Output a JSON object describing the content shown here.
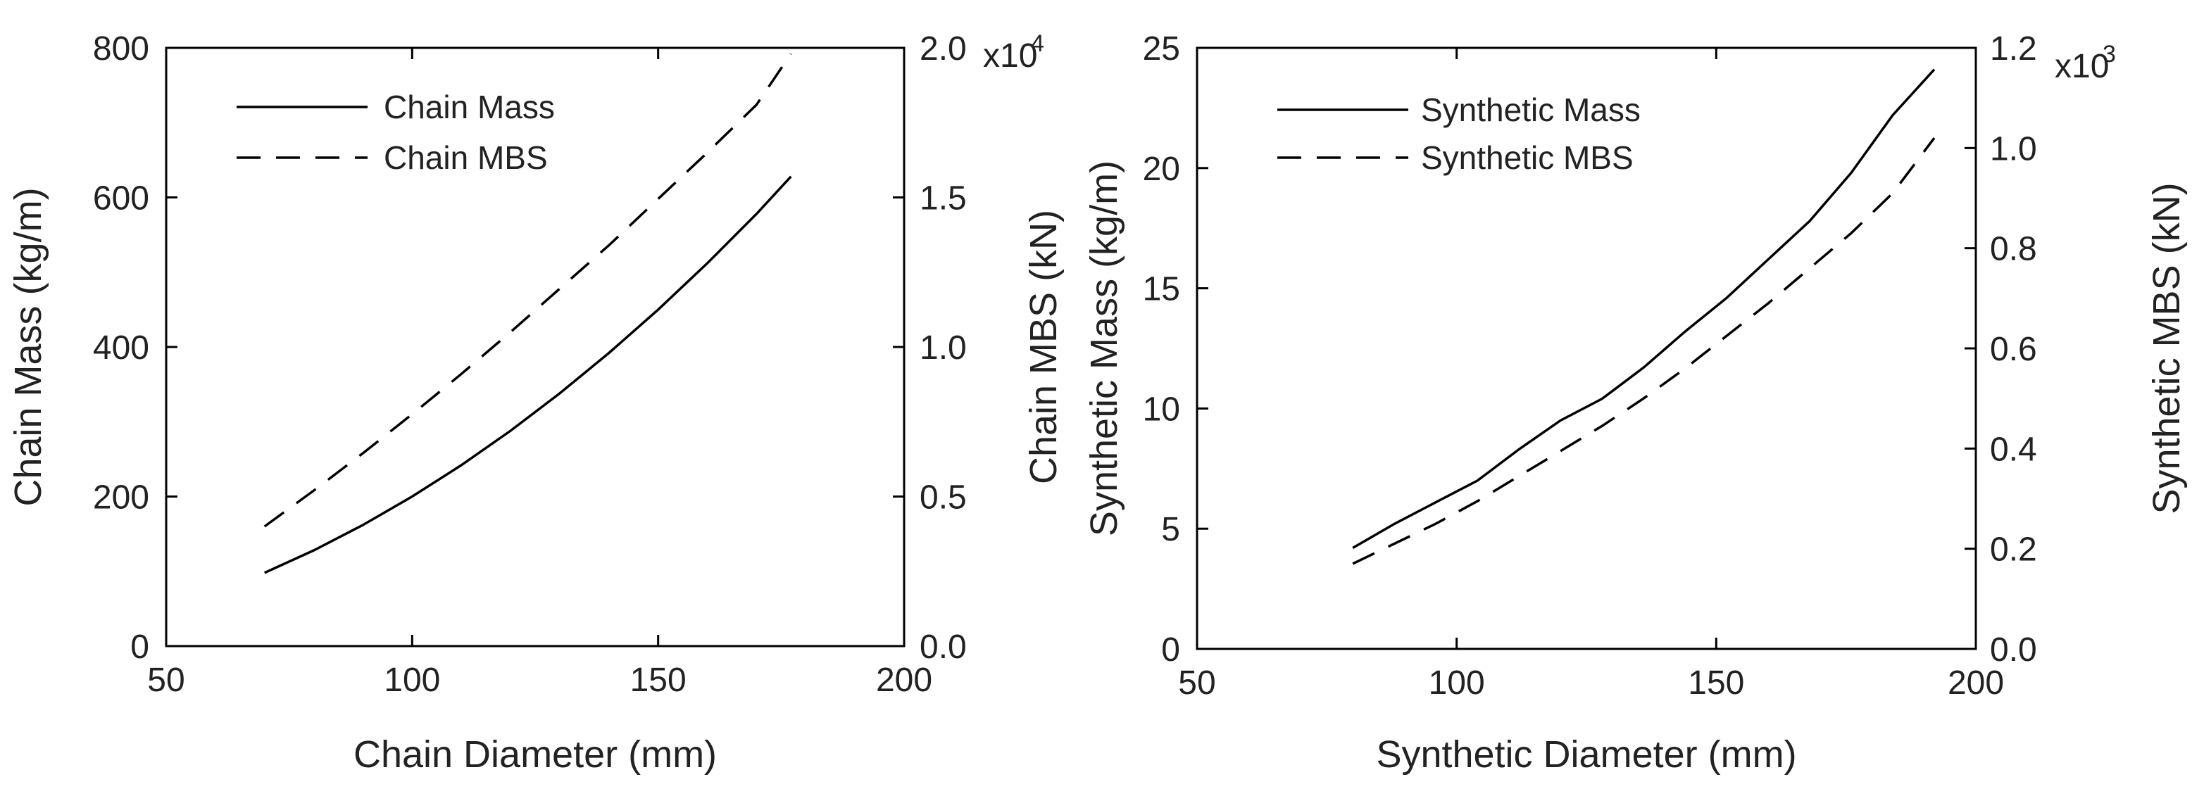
{
  "chart_data": [
    {
      "type": "line",
      "xlabel": "Chain Diameter (mm)",
      "ylabel_left": "Chain Mass (kg/m)",
      "ylabel_right": "Chain MBS (kN)",
      "xlim": [
        50,
        200
      ],
      "ylim_left": [
        0,
        800
      ],
      "ylim_right": [
        0,
        2.0
      ],
      "right_axis_multiplier": {
        "base": "x10",
        "exponent": "4"
      },
      "xticks": [
        "50",
        "100",
        "150",
        "200"
      ],
      "yticks_left": [
        "0",
        "200",
        "400",
        "600",
        "800"
      ],
      "yticks_right": [
        "0.0",
        "0.5",
        "1.0",
        "1.5",
        "2.0"
      ],
      "legend_position": "top-left",
      "series": [
        {
          "name": "Chain Mass",
          "axis": "left",
          "style": "solid",
          "x": [
            70,
            80,
            90,
            100,
            110,
            120,
            130,
            140,
            150,
            160,
            170,
            177
          ],
          "y": [
            98,
            128,
            162,
            200,
            242,
            288,
            338,
            392,
            450,
            512,
            578,
            628
          ]
        },
        {
          "name": "Chain MBS",
          "axis": "right",
          "style": "dashed",
          "x": [
            70,
            80,
            90,
            100,
            110,
            120,
            130,
            140,
            150,
            160,
            170,
            177
          ],
          "y": [
            0.4,
            0.52,
            0.645,
            0.775,
            0.91,
            1.05,
            1.195,
            1.34,
            1.495,
            1.65,
            1.81,
            1.98
          ]
        }
      ]
    },
    {
      "type": "line",
      "xlabel": "Synthetic Diameter (mm)",
      "ylabel_left": "Synthetic Mass (kg/m)",
      "ylabel_right": "Synthetic MBS (kN)",
      "xlim": [
        50,
        200
      ],
      "ylim_left": [
        0,
        25
      ],
      "ylim_right": [
        0,
        1.2
      ],
      "right_axis_multiplier": {
        "base": "x10",
        "exponent": "3"
      },
      "xticks": [
        "50",
        "100",
        "150",
        "200"
      ],
      "yticks_left": [
        "0",
        "5",
        "10",
        "15",
        "20",
        "25"
      ],
      "yticks_right": [
        "0.0",
        "0.2",
        "0.4",
        "0.6",
        "0.8",
        "1.0",
        "1.2"
      ],
      "legend_position": "top-left",
      "series": [
        {
          "name": "Synthetic Mass",
          "axis": "left",
          "style": "solid",
          "x": [
            80,
            88,
            96,
            104,
            112,
            120,
            128,
            136,
            144,
            152,
            160,
            168,
            176,
            184,
            192
          ],
          "y": [
            4.2,
            5.2,
            6.1,
            7.0,
            8.3,
            9.5,
            10.4,
            11.7,
            13.2,
            14.6,
            16.2,
            17.8,
            19.8,
            22.2,
            24.1
          ]
        },
        {
          "name": "Synthetic MBS",
          "axis": "right",
          "style": "dashed",
          "x": [
            80,
            88,
            96,
            104,
            112,
            120,
            128,
            136,
            144,
            152,
            160,
            168,
            176,
            184,
            192
          ],
          "y": [
            0.17,
            0.21,
            0.25,
            0.295,
            0.345,
            0.395,
            0.445,
            0.5,
            0.56,
            0.625,
            0.69,
            0.76,
            0.83,
            0.91,
            1.02
          ]
        }
      ]
    }
  ]
}
